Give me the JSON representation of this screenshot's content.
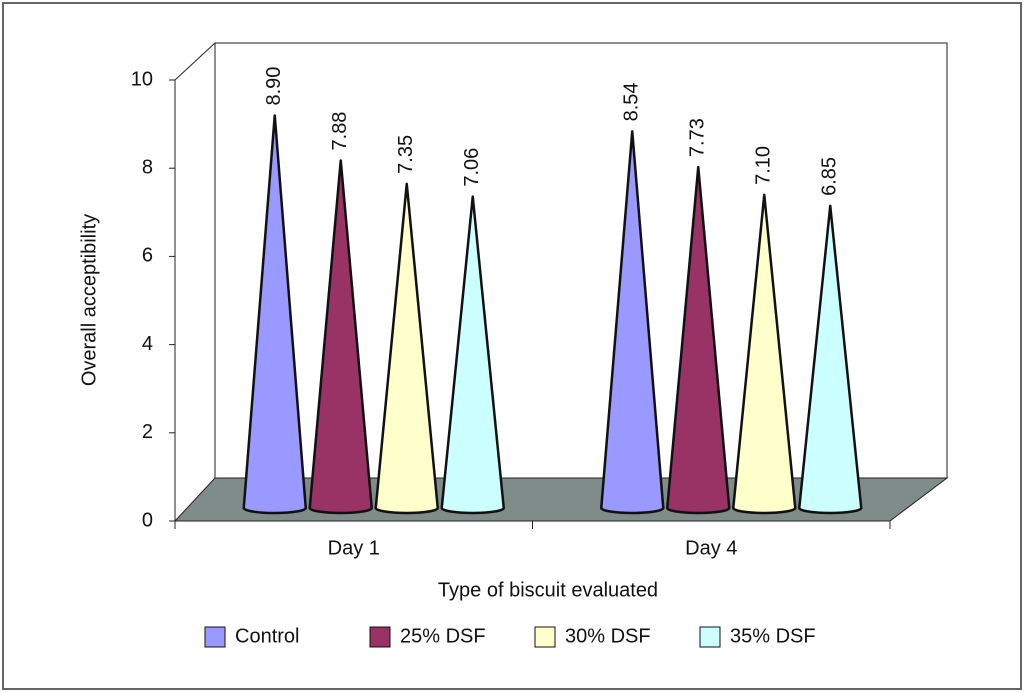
{
  "chart_data": {
    "type": "cone",
    "x_label": "Type of biscuit evaluated",
    "y_label": "Overall acceptibility",
    "categories": [
      "Day 1",
      "Day 4"
    ],
    "series": [
      {
        "name": "Control",
        "color": "#9999ff",
        "values": [
          8.9,
          8.54
        ],
        "value_labels": [
          "8.90",
          "8.54"
        ]
      },
      {
        "name": "25% DSF",
        "color": "#993366",
        "values": [
          7.88,
          7.73
        ],
        "value_labels": [
          "7.88",
          "7.73"
        ]
      },
      {
        "name": "30% DSF",
        "color": "#ffffcc",
        "values": [
          7.35,
          7.1
        ],
        "value_labels": [
          "7.35",
          "7.10"
        ]
      },
      {
        "name": "35% DSF",
        "color": "#ccffff",
        "values": [
          7.06,
          6.85
        ],
        "value_labels": [
          "7.06",
          "6.85"
        ]
      }
    ],
    "ylim": [
      0,
      10
    ],
    "yticks": [
      0,
      2,
      4,
      6,
      8,
      10
    ],
    "grid": false,
    "legend": "bottom"
  }
}
